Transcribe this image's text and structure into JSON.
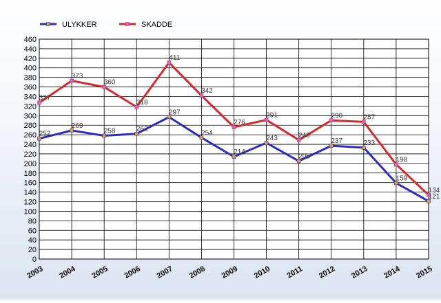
{
  "chart_data": {
    "type": "line",
    "title": "",
    "xlabel": "",
    "ylabel": "",
    "categories": [
      "2003",
      "2004",
      "2005",
      "2006",
      "2007",
      "2008",
      "2009",
      "2010",
      "2011",
      "2012",
      "2013",
      "2014",
      "2015"
    ],
    "ylim": [
      0,
      460
    ],
    "ytick_step": 20,
    "grid": true,
    "legend_position": "top-left",
    "series": [
      {
        "name": "ULYKKER",
        "color": "#2e2bc0",
        "marker_color": "#d9a23a",
        "values": [
          252,
          269,
          258,
          262,
          297,
          254,
          214,
          243,
          205,
          237,
          233,
          159,
          121
        ],
        "labels": [
          "252",
          "269",
          "258",
          "262",
          "297",
          "254",
          "214",
          "243",
          "205",
          "237",
          "233",
          "159",
          "121"
        ]
      },
      {
        "name": "SKADDE",
        "color": "#d42a2f",
        "marker_color": "#c86dd8",
        "values": [
          327,
          373,
          360,
          318,
          411,
          342,
          276,
          291,
          249,
          290,
          287,
          198,
          134
        ],
        "labels": [
          "327",
          "373",
          "360",
          "318",
          "411",
          "342",
          "276",
          "291",
          "249",
          "290",
          "287",
          "198",
          "134"
        ]
      }
    ]
  }
}
